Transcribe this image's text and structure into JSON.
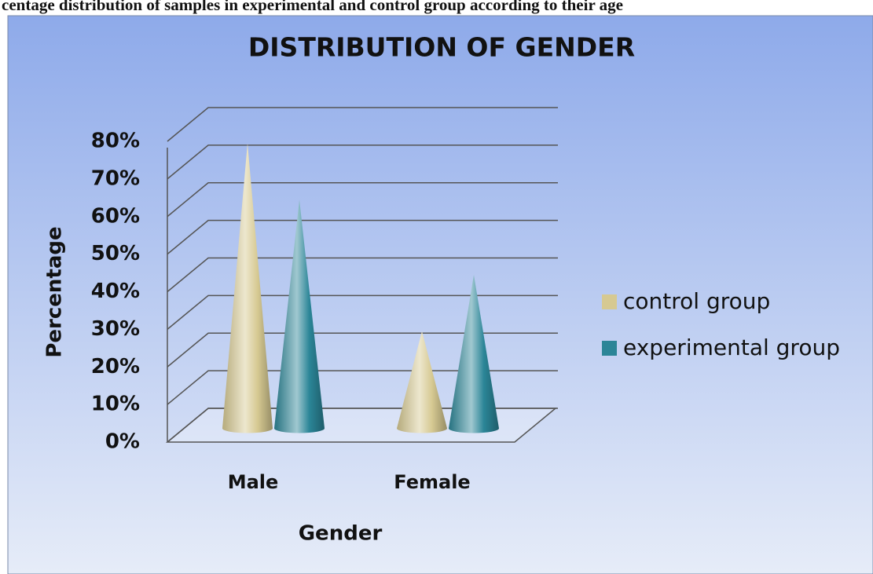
{
  "caption": "centage distribution of samples in experimental and control group according to their age",
  "chart_data": {
    "type": "cone",
    "title": "DISTRIBUTION OF GENDER",
    "x_label": "Gender",
    "y_label": "Percentage",
    "categories": [
      "Male",
      "Female"
    ],
    "series": [
      {
        "name": "control group",
        "color": "#d6c992",
        "values": [
          75,
          25
        ]
      },
      {
        "name": "experimental group",
        "color": "#2b8597",
        "values": [
          60,
          40
        ]
      }
    ],
    "ylim": [
      0,
      80
    ],
    "yticks": [
      {
        "value": 0,
        "label": "0%"
      },
      {
        "value": 10,
        "label": "10%"
      },
      {
        "value": 20,
        "label": "20%"
      },
      {
        "value": 30,
        "label": "30%"
      },
      {
        "value": 40,
        "label": "40%"
      },
      {
        "value": 50,
        "label": "50%"
      },
      {
        "value": 60,
        "label": "60%"
      },
      {
        "value": 70,
        "label": "70%"
      },
      {
        "value": 80,
        "label": "80%"
      }
    ],
    "grid": true,
    "legend": "right"
  }
}
